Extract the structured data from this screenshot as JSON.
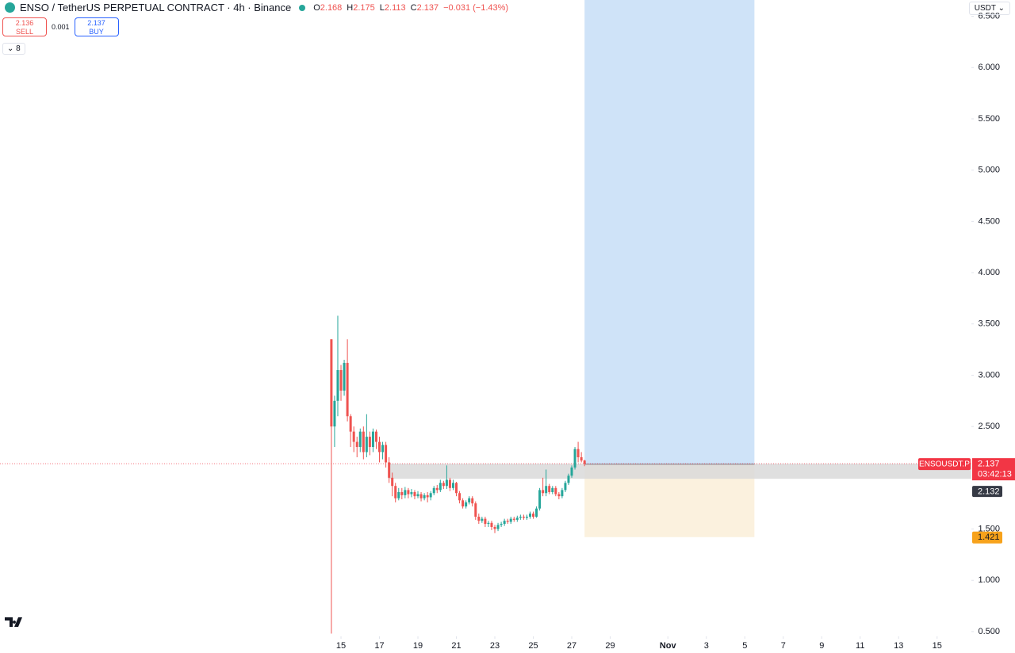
{
  "header": {
    "symbol": "ENSO / TetherUS PERPETUAL CONTRACT · 4h · Binance",
    "ohlc": [
      {
        "label": "O",
        "value": "2.168"
      },
      {
        "label": "H",
        "value": "2.175"
      },
      {
        "label": "L",
        "value": "2.113"
      },
      {
        "label": "C",
        "value": "2.137"
      }
    ],
    "change": "−0.031 (−1.43%)",
    "sell_price": "2.136",
    "sell": "SELL",
    "spread": "0.001",
    "buy_price": "2.137",
    "buy": "BUY",
    "indicators": "8",
    "currency": "USDT"
  },
  "chart_data": {
    "type": "candlestick",
    "up_color": "#26a69a",
    "down_color": "#ef5350",
    "x": [
      -12,
      -8,
      -4,
      0,
      4,
      8,
      12,
      16,
      20,
      24,
      28,
      32,
      36,
      40,
      44,
      48,
      52,
      56,
      60,
      64,
      68,
      72,
      76,
      80,
      84,
      88,
      92,
      96,
      100,
      104,
      108,
      112,
      116,
      120,
      124,
      128,
      132,
      136,
      140,
      144,
      148,
      152,
      156,
      160,
      164,
      168,
      172,
      176,
      180,
      184,
      188,
      192,
      196,
      200,
      204,
      208,
      212,
      216,
      220,
      224,
      228,
      232,
      236,
      240,
      244,
      248,
      252,
      256,
      260,
      264,
      268,
      272,
      276,
      280,
      284,
      288,
      292,
      296,
      300,
      304
    ],
    "open": [
      3.35,
      2.5,
      2.75,
      3.05,
      2.85,
      3.12,
      2.6,
      2.45,
      2.35,
      2.3,
      2.45,
      2.25,
      2.4,
      2.3,
      2.45,
      2.35,
      2.25,
      2.32,
      2.15,
      2.0,
      1.92,
      1.8,
      1.86,
      1.83,
      1.88,
      1.84,
      1.86,
      1.82,
      1.84,
      1.8,
      1.83,
      1.81,
      1.85,
      1.9,
      1.88,
      1.95,
      1.92,
      1.98,
      1.9,
      1.95,
      1.85,
      1.78,
      1.72,
      1.76,
      1.8,
      1.75,
      1.62,
      1.58,
      1.6,
      1.55,
      1.56,
      1.52,
      1.5,
      1.54,
      1.55,
      1.58,
      1.57,
      1.6,
      1.59,
      1.61,
      1.62,
      1.61,
      1.62,
      1.65,
      1.62,
      1.7,
      1.88,
      1.85,
      1.92,
      1.86,
      1.9,
      1.84,
      1.82,
      1.88,
      1.95,
      2.02,
      2.1,
      2.28,
      2.2,
      2.168
    ],
    "high": [
      3.35,
      2.8,
      3.58,
      3.1,
      3.15,
      3.35,
      2.62,
      2.5,
      2.4,
      2.48,
      2.5,
      2.62,
      2.45,
      2.48,
      2.47,
      2.4,
      2.35,
      2.35,
      2.2,
      2.05,
      1.95,
      1.9,
      1.9,
      1.91,
      1.9,
      1.89,
      1.88,
      1.87,
      1.86,
      1.85,
      1.86,
      1.87,
      1.92,
      1.93,
      1.98,
      1.97,
      2.12,
      2.0,
      1.98,
      1.96,
      1.87,
      1.8,
      1.78,
      1.82,
      1.82,
      1.77,
      1.65,
      1.62,
      1.62,
      1.58,
      1.58,
      1.54,
      1.56,
      1.57,
      1.6,
      1.6,
      1.62,
      1.62,
      1.63,
      1.64,
      1.64,
      1.64,
      1.67,
      1.67,
      1.72,
      1.9,
      2.0,
      2.08,
      1.94,
      1.92,
      1.92,
      1.86,
      1.9,
      1.97,
      2.04,
      2.12,
      2.3,
      2.35,
      2.25,
      2.175
    ],
    "low": [
      0.48,
      2.3,
      2.6,
      2.75,
      2.8,
      2.55,
      2.3,
      2.25,
      2.2,
      2.25,
      2.18,
      2.2,
      2.22,
      2.25,
      2.28,
      2.15,
      2.18,
      2.1,
      1.95,
      1.82,
      1.76,
      1.78,
      1.79,
      1.8,
      1.8,
      1.81,
      1.79,
      1.8,
      1.77,
      1.78,
      1.76,
      1.78,
      1.83,
      1.85,
      1.86,
      1.89,
      1.89,
      1.87,
      1.88,
      1.82,
      1.75,
      1.7,
      1.7,
      1.74,
      1.72,
      1.59,
      1.55,
      1.56,
      1.52,
      1.52,
      1.49,
      1.46,
      1.48,
      1.52,
      1.53,
      1.55,
      1.55,
      1.57,
      1.57,
      1.59,
      1.59,
      1.59,
      1.6,
      1.6,
      1.61,
      1.68,
      1.82,
      1.82,
      1.84,
      1.84,
      1.82,
      1.79,
      1.8,
      1.86,
      1.93,
      2.0,
      2.08,
      2.15,
      2.15,
      2.113
    ],
    "close": [
      2.5,
      2.75,
      3.05,
      2.85,
      3.12,
      2.6,
      2.45,
      2.35,
      2.3,
      2.45,
      2.25,
      2.4,
      2.3,
      2.45,
      2.35,
      2.25,
      2.32,
      2.15,
      2.0,
      1.92,
      1.8,
      1.86,
      1.83,
      1.88,
      1.84,
      1.86,
      1.82,
      1.84,
      1.8,
      1.83,
      1.81,
      1.85,
      1.9,
      1.88,
      1.95,
      1.92,
      1.98,
      1.9,
      1.95,
      1.85,
      1.78,
      1.72,
      1.76,
      1.8,
      1.75,
      1.62,
      1.58,
      1.6,
      1.55,
      1.56,
      1.52,
      1.5,
      1.54,
      1.55,
      1.58,
      1.57,
      1.6,
      1.59,
      1.61,
      1.62,
      1.61,
      1.62,
      1.65,
      1.62,
      1.7,
      1.88,
      1.85,
      1.92,
      1.86,
      1.9,
      1.84,
      1.82,
      1.88,
      1.95,
      2.02,
      2.1,
      2.28,
      2.2,
      2.168,
      2.137
    ],
    "xlim": [
      -425.6,
      786.8
    ],
    "xticks": [
      {
        "value": 0,
        "label": "15"
      },
      {
        "value": 48,
        "label": "17"
      },
      {
        "value": 96,
        "label": "19"
      },
      {
        "value": 144,
        "label": "21"
      },
      {
        "value": 192,
        "label": "23"
      },
      {
        "value": 240,
        "label": "25"
      },
      {
        "value": 288,
        "label": "27"
      },
      {
        "value": 336,
        "label": "29"
      },
      {
        "value": 408,
        "label": "Nov"
      },
      {
        "value": 456,
        "label": "3"
      },
      {
        "value": 504,
        "label": "5"
      },
      {
        "value": 552,
        "label": "7"
      },
      {
        "value": 600,
        "label": "9"
      },
      {
        "value": 648,
        "label": "11"
      },
      {
        "value": 696,
        "label": "13"
      },
      {
        "value": 744,
        "label": "15"
      }
    ],
    "ylim": [
      0.291,
      6.659
    ],
    "yticks": [
      {
        "value": 6.5,
        "label": "6.500"
      },
      {
        "value": 6,
        "label": "6.000"
      },
      {
        "value": 5.5,
        "label": "5.500"
      },
      {
        "value": 5,
        "label": "5.000"
      },
      {
        "value": 4.5,
        "label": "4.500"
      },
      {
        "value": 4,
        "label": "4.000"
      },
      {
        "value": 3.5,
        "label": "3.500"
      },
      {
        "value": 3,
        "label": "3.000"
      },
      {
        "value": 2.5,
        "label": "2.500"
      },
      {
        "value": 1.5,
        "label": "1.500"
      },
      {
        "value": 1,
        "label": "1.000"
      },
      {
        "value": 0.5,
        "label": "0.500"
      }
    ],
    "last_price": {
      "value": 2.137,
      "label": "2.137",
      "symbol": "ENSOUSDT.P",
      "countdown": "03:42:13",
      "color": "#f23645"
    },
    "zone": {
      "low": 1.99,
      "high": 2.137,
      "start": 59,
      "color": "#d9d9d9"
    },
    "position": {
      "start": 304,
      "end": 516,
      "target": 7.0,
      "entry": {
        "value": 2.132,
        "label": "2.132"
      },
      "stop": {
        "value": 1.421,
        "label": "1.421"
      },
      "target_color": "#cfe3f8",
      "stop_color": "#fbf1de",
      "stop_label_color": "#f7a21b",
      "entry_label_color": "#363a45"
    }
  }
}
